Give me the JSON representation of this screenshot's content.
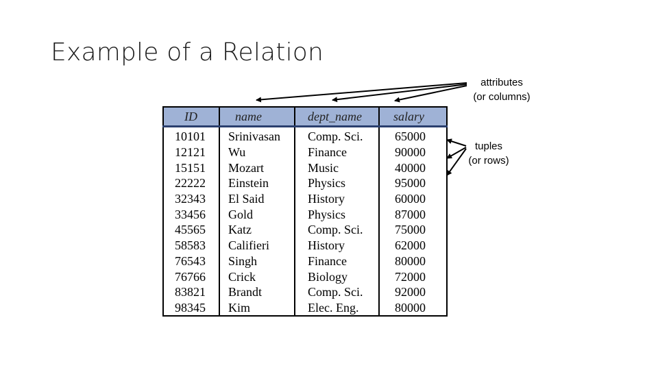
{
  "slide": {
    "title": "Example of a Relation"
  },
  "annotations": {
    "attributes_line1": "attributes",
    "attributes_line2": "(or columns)",
    "tuples_line1": "tuples",
    "tuples_line2": "(or rows)"
  },
  "relation": {
    "header_color": "#9fb2d6",
    "columns": [
      "ID",
      "name",
      "dept_name",
      "salary"
    ],
    "rows": [
      [
        "10101",
        "Srinivasan",
        "Comp. Sci.",
        "65000"
      ],
      [
        "12121",
        "Wu",
        "Finance",
        "90000"
      ],
      [
        "15151",
        "Mozart",
        "Music",
        "40000"
      ],
      [
        "22222",
        "Einstein",
        "Physics",
        "95000"
      ],
      [
        "32343",
        "El Said",
        "History",
        "60000"
      ],
      [
        "33456",
        "Gold",
        "Physics",
        "87000"
      ],
      [
        "45565",
        "Katz",
        "Comp. Sci.",
        "75000"
      ],
      [
        "58583",
        "Califieri",
        "History",
        "62000"
      ],
      [
        "76543",
        "Singh",
        "Finance",
        "80000"
      ],
      [
        "76766",
        "Crick",
        "Biology",
        "72000"
      ],
      [
        "83821",
        "Brandt",
        "Comp. Sci.",
        "92000"
      ],
      [
        "98345",
        "Kim",
        "Elec. Eng.",
        "80000"
      ]
    ]
  }
}
